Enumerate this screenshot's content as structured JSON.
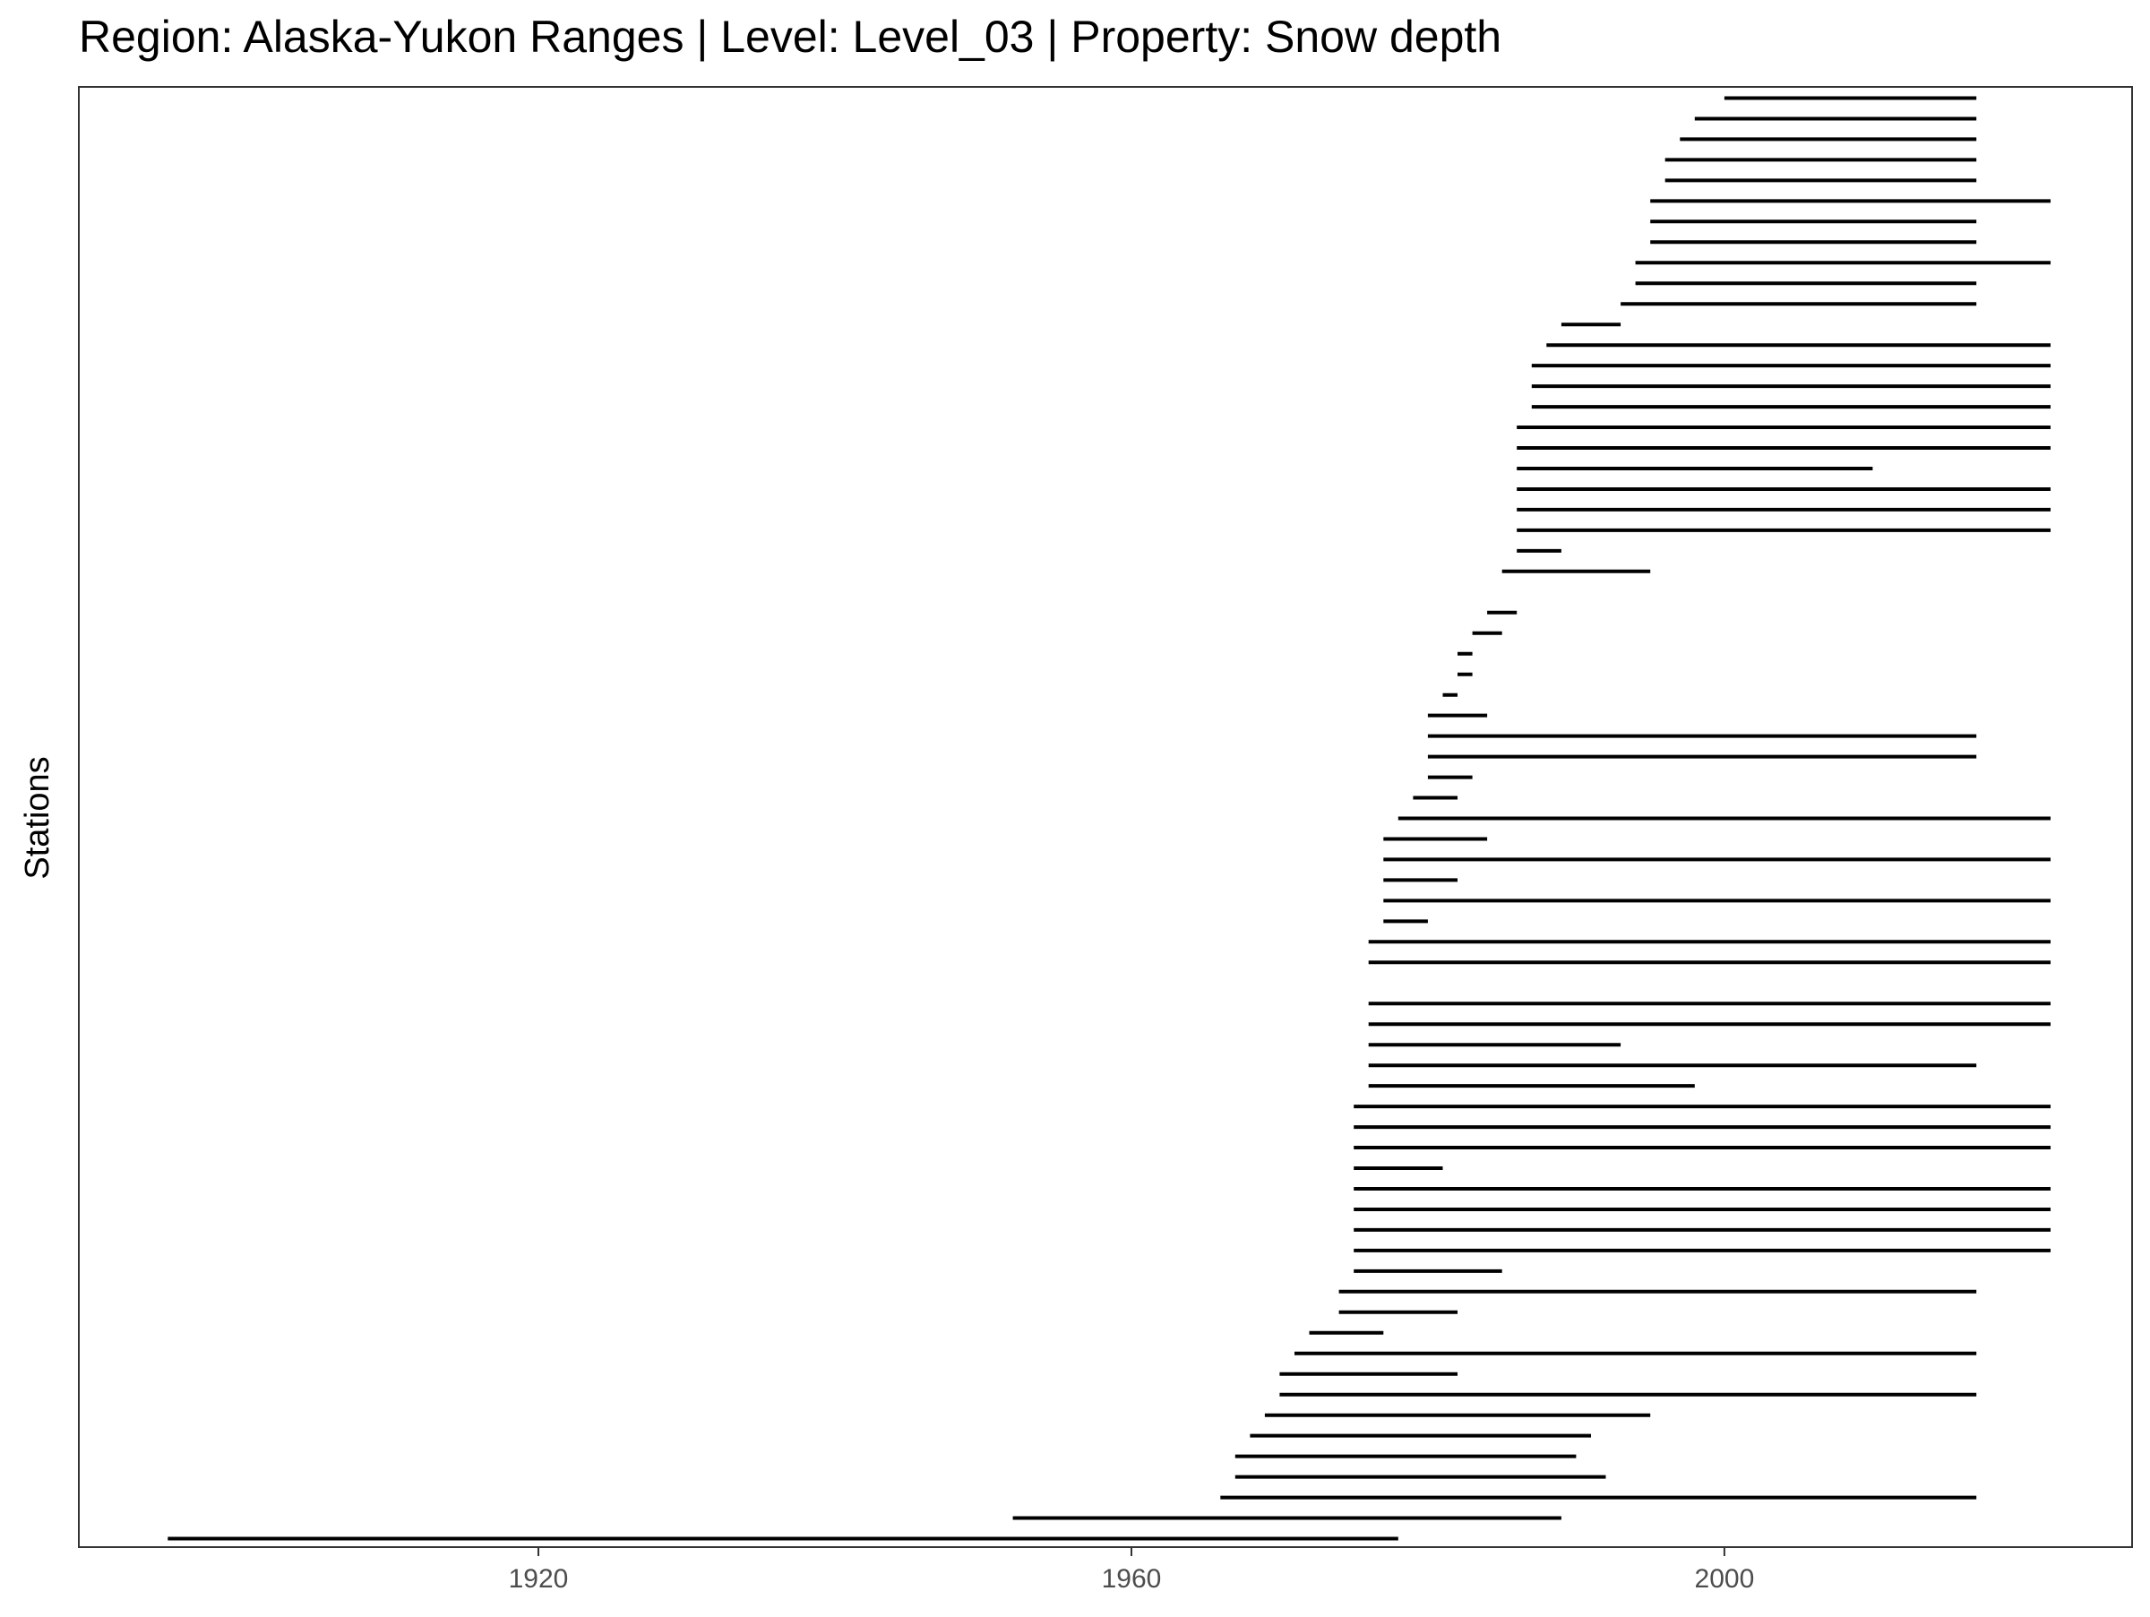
{
  "chart_data": {
    "type": "line",
    "title": "Region: Alaska-Yukon Ranges | Level: Level_03 | Property: Snow depth",
    "xlabel": "",
    "ylabel": "Stations",
    "xlim": [
      1889,
      2027.5
    ],
    "x_ticks": [
      1920,
      1960,
      2000
    ],
    "grid": false,
    "legend": "none",
    "line_color": "#000000",
    "station_records": [
      {
        "start": 2000.0,
        "end": 2017.0
      },
      {
        "start": 1998.0,
        "end": 2017.0
      },
      {
        "start": 1997.0,
        "end": 2017.0
      },
      {
        "start": 1996.0,
        "end": 2017.0
      },
      {
        "start": 1996.0,
        "end": 2017.0
      },
      {
        "start": 1995.0,
        "end": 2022.0
      },
      {
        "start": 1995.0,
        "end": 2017.0
      },
      {
        "start": 1995.0,
        "end": 2017.0
      },
      {
        "start": 1994.0,
        "end": 2022.0
      },
      {
        "start": 1994.0,
        "end": 2017.0
      },
      {
        "start": 1993.0,
        "end": 2017.0
      },
      {
        "start": 1989.0,
        "end": 1993.0
      },
      {
        "start": 1988.0,
        "end": 2022.0
      },
      {
        "start": 1987.0,
        "end": 2022.0
      },
      {
        "start": 1987.0,
        "end": 2022.0
      },
      {
        "start": 1987.0,
        "end": 2022.0
      },
      {
        "start": 1986.0,
        "end": 2022.0
      },
      {
        "start": 1986.0,
        "end": 2022.0
      },
      {
        "start": 1986.0,
        "end": 2010.0
      },
      {
        "start": 1986.0,
        "end": 2022.0
      },
      {
        "start": 1986.0,
        "end": 2022.0
      },
      {
        "start": 1986.0,
        "end": 2022.0
      },
      {
        "start": 1986.0,
        "end": 1989.0
      },
      {
        "start": 1985.0,
        "end": 1995.0
      },
      {
        "start": null,
        "end": null
      },
      {
        "start": 1984.0,
        "end": 1986.0
      },
      {
        "start": 1983.0,
        "end": 1985.0
      },
      {
        "start": 1982.0,
        "end": 1983.0
      },
      {
        "start": 1982.0,
        "end": 1983.0
      },
      {
        "start": 1981.0,
        "end": 1982.0
      },
      {
        "start": 1980.0,
        "end": 1984.0
      },
      {
        "start": 1980.0,
        "end": 2017.0
      },
      {
        "start": 1980.0,
        "end": 2017.0
      },
      {
        "start": 1980.0,
        "end": 1983.0
      },
      {
        "start": 1979.0,
        "end": 1982.0
      },
      {
        "start": 1978.0,
        "end": 2022.0
      },
      {
        "start": 1977.0,
        "end": 1984.0
      },
      {
        "start": 1977.0,
        "end": 2022.0
      },
      {
        "start": 1977.0,
        "end": 1982.0
      },
      {
        "start": 1977.0,
        "end": 2022.0
      },
      {
        "start": 1977.0,
        "end": 1980.0
      },
      {
        "start": 1976.0,
        "end": 2022.0
      },
      {
        "start": 1976.0,
        "end": 2022.0
      },
      {
        "start": null,
        "end": null
      },
      {
        "start": 1976.0,
        "end": 2022.0
      },
      {
        "start": 1976.0,
        "end": 2022.0
      },
      {
        "start": 1976.0,
        "end": 1993.0
      },
      {
        "start": 1976.0,
        "end": 2017.0
      },
      {
        "start": 1976.0,
        "end": 1998.0
      },
      {
        "start": 1975.0,
        "end": 2022.0
      },
      {
        "start": 1975.0,
        "end": 2022.0
      },
      {
        "start": 1975.0,
        "end": 2022.0
      },
      {
        "start": 1975.0,
        "end": 1981.0
      },
      {
        "start": 1975.0,
        "end": 2022.0
      },
      {
        "start": 1975.0,
        "end": 2022.0
      },
      {
        "start": 1975.0,
        "end": 2022.0
      },
      {
        "start": 1975.0,
        "end": 2022.0
      },
      {
        "start": 1975.0,
        "end": 1985.0
      },
      {
        "start": 1974.0,
        "end": 2017.0
      },
      {
        "start": 1974.0,
        "end": 1982.0
      },
      {
        "start": 1972.0,
        "end": 1977.0
      },
      {
        "start": 1971.0,
        "end": 2017.0
      },
      {
        "start": 1970.0,
        "end": 1982.0
      },
      {
        "start": 1970.0,
        "end": 2017.0
      },
      {
        "start": 1969.0,
        "end": 1995.0
      },
      {
        "start": 1968.0,
        "end": 1991.0
      },
      {
        "start": 1967.0,
        "end": 1990.0
      },
      {
        "start": 1967.0,
        "end": 1992.0
      },
      {
        "start": 1966.0,
        "end": 2017.0
      },
      {
        "start": 1952.0,
        "end": 1989.0
      },
      {
        "start": 1895.0,
        "end": 1978.0
      }
    ]
  }
}
